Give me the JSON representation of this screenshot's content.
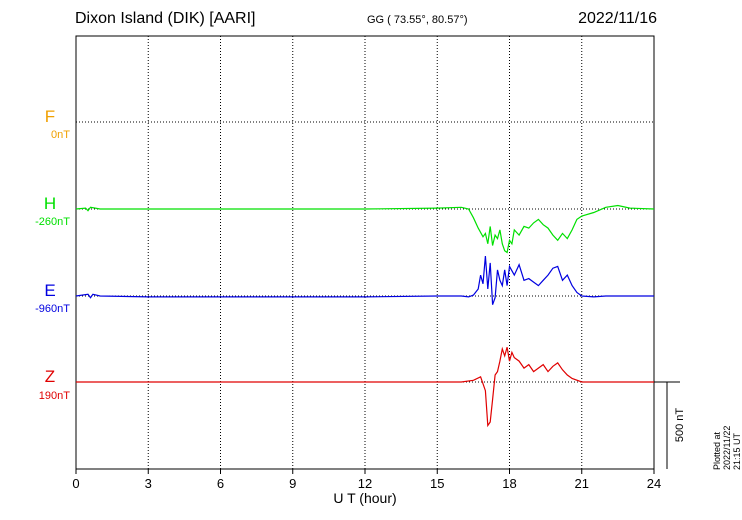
{
  "header": {
    "station": "Dixon Island (DIK)  [AARI]",
    "coords": "GG ( 73.55°,  80.57°)",
    "date": "2022/11/16"
  },
  "footer": {
    "plotted": "Plotted at 2022/11/22 21:15 UT"
  },
  "scale_label": "500 nT",
  "colors": {
    "F": "#f0a000",
    "H": "#00e000",
    "E": "#0000e0",
    "Z": "#e00000"
  },
  "channels": [
    {
      "name": "F",
      "baseline": "0nT"
    },
    {
      "name": "H",
      "baseline": "-260nT"
    },
    {
      "name": "E",
      "baseline": "-960nT"
    },
    {
      "name": "Z",
      "baseline": "190nT"
    }
  ],
  "chart_data": {
    "type": "line",
    "xlabel": "U T (hour)",
    "xlim": [
      0,
      24
    ],
    "x_ticks": [
      "0",
      "3",
      "6",
      "9",
      "12",
      "15",
      "18",
      "21",
      "24"
    ],
    "grid": true,
    "scale_bar_nT": 500,
    "series": [
      {
        "name": "F",
        "x": [],
        "values": []
      },
      {
        "name": "H",
        "x": [
          0,
          0.4,
          0.5,
          0.6,
          1,
          3,
          6,
          9,
          12,
          15,
          16,
          16.3,
          16.5,
          16.7,
          16.9,
          17.0,
          17.1,
          17.2,
          17.3,
          17.4,
          17.5,
          17.6,
          17.7,
          17.8,
          17.9,
          18.0,
          18.1,
          18.2,
          18.4,
          18.6,
          18.8,
          19.0,
          19.2,
          19.4,
          19.6,
          19.8,
          20.0,
          20.2,
          20.4,
          20.6,
          20.8,
          21.0,
          21.5,
          22.0,
          22.5,
          23,
          24
        ],
        "values": [
          0,
          5,
          -10,
          10,
          0,
          0,
          0,
          0,
          0,
          5,
          10,
          0,
          -50,
          -110,
          -160,
          -140,
          -200,
          -100,
          -210,
          -150,
          -170,
          -120,
          -200,
          -240,
          -250,
          -180,
          -200,
          -120,
          -150,
          -100,
          -110,
          -80,
          -60,
          -90,
          -110,
          -150,
          -180,
          -140,
          -170,
          -120,
          -60,
          -40,
          -20,
          10,
          20,
          5,
          0
        ]
      },
      {
        "name": "E",
        "x": [
          0,
          0.5,
          0.6,
          0.7,
          1,
          3,
          6,
          9,
          12,
          15,
          16,
          16.3,
          16.5,
          16.7,
          16.8,
          16.9,
          17.0,
          17.1,
          17.2,
          17.3,
          17.4,
          17.5,
          17.6,
          17.7,
          17.8,
          17.9,
          18.0,
          18.2,
          18.4,
          18.6,
          18.8,
          19.0,
          19.2,
          19.4,
          19.6,
          19.8,
          20.0,
          20.2,
          20.4,
          20.6,
          20.8,
          21.0,
          21.5,
          22.0,
          23,
          24
        ],
        "values": [
          0,
          10,
          -10,
          10,
          0,
          -5,
          -5,
          -5,
          -5,
          0,
          0,
          -5,
          5,
          40,
          120,
          70,
          230,
          40,
          190,
          -50,
          -10,
          150,
          90,
          60,
          150,
          60,
          170,
          120,
          180,
          90,
          100,
          80,
          60,
          90,
          120,
          160,
          170,
          90,
          120,
          60,
          20,
          0,
          -5,
          0,
          0,
          0
        ]
      },
      {
        "name": "Z",
        "x": [
          0,
          3,
          6,
          9,
          12,
          15,
          16,
          16.5,
          16.8,
          17.0,
          17.1,
          17.2,
          17.3,
          17.4,
          17.5,
          17.6,
          17.7,
          17.8,
          17.9,
          18.0,
          18.1,
          18.2,
          18.4,
          18.6,
          18.8,
          19.0,
          19.2,
          19.4,
          19.6,
          19.8,
          20.0,
          20.2,
          20.4,
          20.6,
          21.0,
          22,
          23,
          24
        ],
        "values": [
          0,
          0,
          0,
          0,
          0,
          0,
          0,
          10,
          30,
          -50,
          -250,
          -230,
          -100,
          40,
          60,
          120,
          190,
          150,
          200,
          120,
          170,
          140,
          120,
          80,
          100,
          60,
          80,
          100,
          60,
          90,
          110,
          70,
          40,
          20,
          0,
          0,
          0,
          0
        ]
      }
    ]
  }
}
